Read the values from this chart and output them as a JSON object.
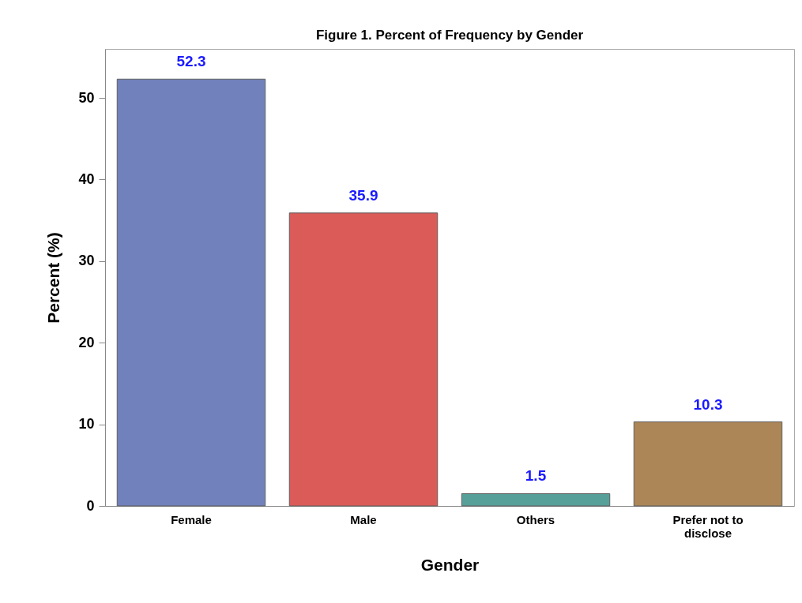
{
  "chart_data": {
    "type": "bar",
    "title": "Figure 1. Percent of Frequency by Gender",
    "xlabel": "Gender",
    "ylabel": "Percent (%)",
    "categories": [
      "Female",
      "Male",
      "Others",
      "Prefer not to disclose"
    ],
    "values": [
      52.3,
      35.9,
      1.5,
      10.3
    ],
    "colors": [
      "#6a7bb8",
      "#d9534f",
      "#4f9a94",
      "#a8804f"
    ],
    "ylim": [
      0,
      56
    ],
    "yticks": [
      0,
      10,
      20,
      30,
      40,
      50
    ],
    "grid": false,
    "data_labels": true
  }
}
